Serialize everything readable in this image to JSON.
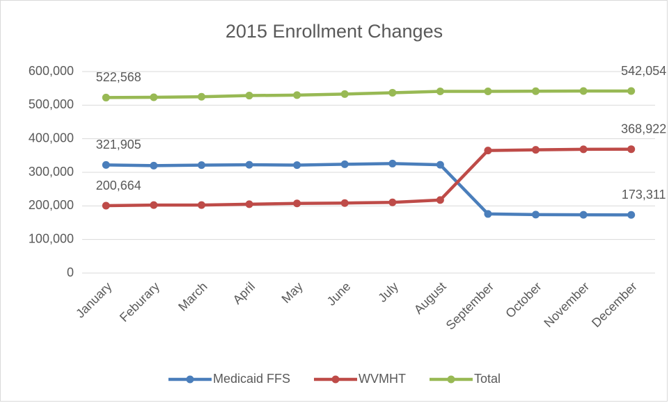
{
  "chart_data": {
    "type": "line",
    "title": "2015 Enrollment Changes",
    "categories": [
      "January",
      "Feburary",
      "March",
      "April",
      "May",
      "June",
      "July",
      "August",
      "September",
      "October",
      "November",
      "December"
    ],
    "series": [
      {
        "name": "Medicaid FFS",
        "color": "#4a7ebb",
        "values": [
          321905,
          320000,
          321500,
          322500,
          321500,
          324000,
          326000,
          322500,
          176000,
          174000,
          173500,
          173311
        ],
        "value_labels": [
          "321,905",
          null,
          null,
          null,
          null,
          null,
          null,
          null,
          null,
          null,
          null,
          "173,311"
        ]
      },
      {
        "name": "WVMHT",
        "color": "#be4b48",
        "values": [
          200664,
          202500,
          202500,
          205000,
          207500,
          208500,
          210500,
          217500,
          365000,
          367000,
          368500,
          368922
        ],
        "value_labels": [
          "200,664",
          null,
          null,
          null,
          null,
          null,
          null,
          null,
          null,
          null,
          null,
          "368,922"
        ]
      },
      {
        "name": "Total",
        "color": "#98b954",
        "values": [
          522568,
          523500,
          525000,
          528500,
          530000,
          533000,
          537000,
          541000,
          541000,
          541500,
          542000,
          542054
        ],
        "value_labels": [
          "522,568",
          null,
          null,
          null,
          null,
          null,
          null,
          null,
          null,
          null,
          null,
          "542,054"
        ]
      }
    ],
    "ylim": [
      0,
      600000
    ],
    "yticks": [
      0,
      {
        "value": 100000,
        "label": "100,000"
      },
      {
        "value": 200000,
        "label": "200,000"
      },
      {
        "value": 300000,
        "label": "300,000"
      },
      {
        "value": 400000,
        "label": "400,000"
      },
      {
        "value": 500000,
        "label": "500,000"
      },
      {
        "value": 600000,
        "label": "600,000"
      }
    ],
    "grid": true,
    "legend": "bottom"
  }
}
